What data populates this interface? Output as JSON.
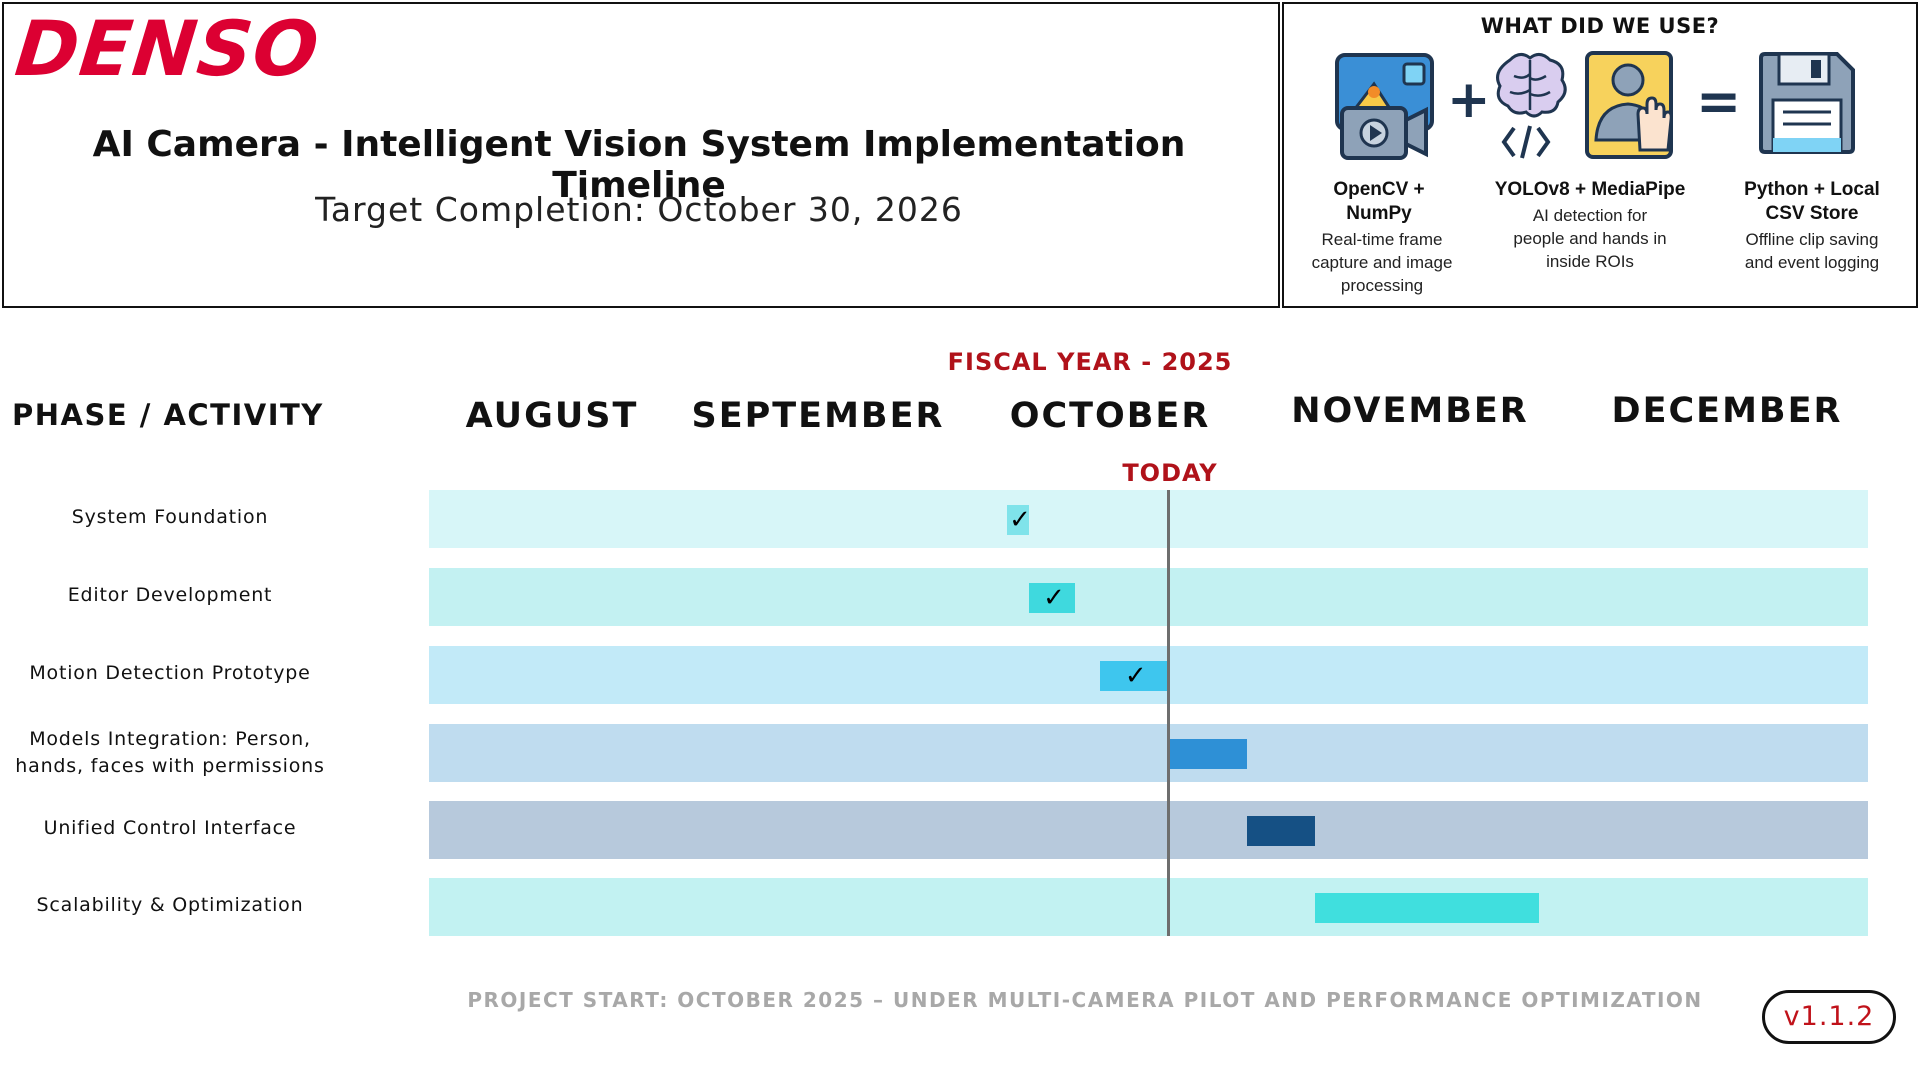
{
  "header": {
    "logo_text": "DENSO",
    "title": "AI Camera - Intelligent Vision System  Implementation Timeline",
    "subtitle": "Target Completion: October 30, 2026"
  },
  "tools": {
    "heading": "WHAT DID WE USE?",
    "plus": "+",
    "equals": "=",
    "items": [
      {
        "icon": "image-video-icon",
        "name_line1": "OpenCV +",
        "name_line2": "NumPy",
        "desc": [
          "Real-time frame",
          "capture and image",
          "processing"
        ]
      },
      {
        "icon": "brain-code-icon",
        "name_line1": "YOLOv8 + MediaPipe",
        "name_line2": "",
        "desc": [
          "AI detection for",
          "people and hands in",
          "inside ROIs"
        ]
      },
      {
        "icon": "person-hand-icon",
        "name_line1": "",
        "name_line2": "",
        "desc": []
      },
      {
        "icon": "floppy-disk-icon",
        "name_line1": "Python + Local",
        "name_line2": "CSV Store",
        "desc": [
          "Offline clip saving",
          "and event logging"
        ]
      }
    ]
  },
  "timeline": {
    "fiscal_label": "FISCAL YEAR - 2025",
    "phase_header": "PHASE / ACTIVITY",
    "months": [
      "AUGUST",
      "SEPTEMBER",
      "OCTOBER",
      "NOVEMBER",
      "DECEMBER"
    ],
    "today_label": "TODAY",
    "footer": "PROJECT START: OCTOBER 2025 – UNDER MULTI-CAMERA PILOT AND PERFORMANCE OPTIMIZATION",
    "version": "v1.1.2"
  },
  "chart_data": {
    "type": "gantt",
    "title": "AI Camera - Intelligent Vision System  Implementation Timeline",
    "x_axis": "month",
    "x_range_month_index": [
      0,
      5
    ],
    "today_month_index": 3.02,
    "tasks": [
      {
        "label": "System Foundation",
        "start": 2.43,
        "end": 2.51,
        "complete": true,
        "bar_color": "#7fe3ea",
        "band_color": "#d7f6f8"
      },
      {
        "label": "Editor Development",
        "start": 2.51,
        "end": 2.68,
        "complete": true,
        "bar_color": "#3fd9de",
        "band_color": "#c3f1f2"
      },
      {
        "label": "Motion Detection Prototype",
        "start": 2.77,
        "end": 3.02,
        "complete": true,
        "bar_color": "#3ec6ee",
        "band_color": "#c2eaf8"
      },
      {
        "label_lines": [
          "Models Integration: Person,",
          "hands, faces with permissions"
        ],
        "start": 3.02,
        "end": 3.31,
        "complete": false,
        "bar_color": "#2e90d6",
        "band_color": "#bfdcef"
      },
      {
        "label": "Unified Control Interface",
        "start": 3.31,
        "end": 3.56,
        "complete": false,
        "bar_color": "#155084",
        "band_color": "#b7c9dc"
      },
      {
        "label": "Scalability & Optimization",
        "start": 3.56,
        "end": 4.38,
        "complete": false,
        "bar_color": "#40dfde",
        "band_color": "#c2f2f2"
      }
    ]
  }
}
